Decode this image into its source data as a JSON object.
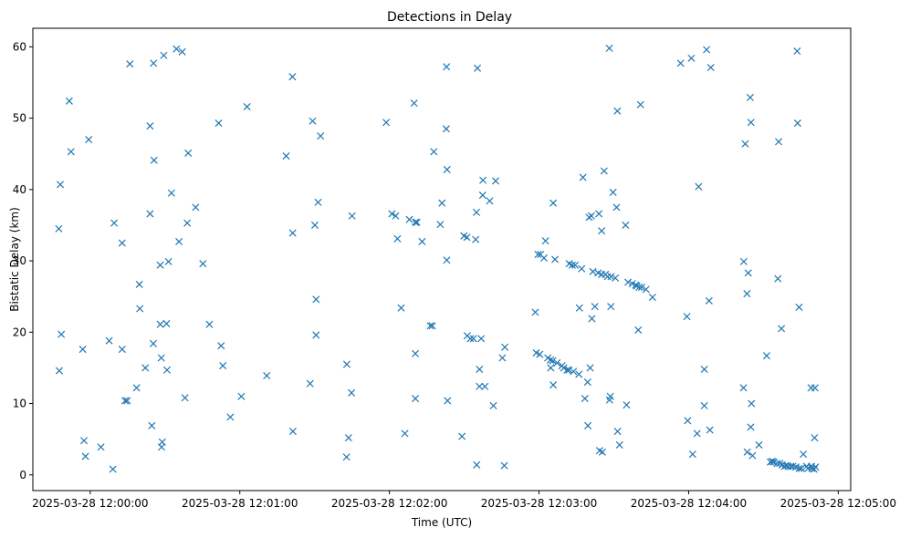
{
  "chart_data": {
    "type": "scatter",
    "title": "Detections in Delay",
    "xlabel": "Time (UTC)",
    "ylabel": "Bistatic Delay (km)",
    "marker": "x",
    "marker_color": "#1f77b4",
    "x_unit": "seconds after 2025-03-28 12:00:00",
    "xlim": [
      -23,
      305
    ],
    "ylim": [
      -2.2,
      62.6
    ],
    "grid": false,
    "x_ticks": [
      {
        "value": 0,
        "label": "2025-03-28 12:00:00"
      },
      {
        "value": 60,
        "label": "2025-03-28 12:01:00"
      },
      {
        "value": 120,
        "label": "2025-03-28 12:02:00"
      },
      {
        "value": 180,
        "label": "2025-03-28 12:03:00"
      },
      {
        "value": 240,
        "label": "2025-03-28 12:04:00"
      },
      {
        "value": 300,
        "label": "2025-03-28 12:05:00"
      }
    ],
    "y_ticks": [
      {
        "value": 0,
        "label": "0"
      },
      {
        "value": 10,
        "label": "10"
      },
      {
        "value": 20,
        "label": "20"
      },
      {
        "value": 30,
        "label": "30"
      },
      {
        "value": 40,
        "label": "40"
      },
      {
        "value": 50,
        "label": "50"
      },
      {
        "value": 60,
        "label": "60"
      }
    ],
    "points": [
      [
        -12.6,
        34.5
      ],
      [
        -12.4,
        14.6
      ],
      [
        -12,
        40.7
      ],
      [
        -11.6,
        19.7
      ],
      [
        -8.4,
        52.4
      ],
      [
        -7.7,
        45.3
      ],
      [
        -3,
        17.6
      ],
      [
        -2.5,
        4.8
      ],
      [
        -1.9,
        2.6
      ],
      [
        -0.6,
        47
      ],
      [
        4.3,
        3.9
      ],
      [
        7.6,
        18.8
      ],
      [
        9.1,
        0.8
      ],
      [
        9.6,
        35.3
      ],
      [
        12.8,
        32.5
      ],
      [
        12.8,
        17.6
      ],
      [
        14,
        10.4
      ],
      [
        14.8,
        10.4
      ],
      [
        15.9,
        57.6
      ],
      [
        18.6,
        12.2
      ],
      [
        19.7,
        26.7
      ],
      [
        19.9,
        23.3
      ],
      [
        22.1,
        15
      ],
      [
        24,
        48.9
      ],
      [
        24,
        36.6
      ],
      [
        24.7,
        6.9
      ],
      [
        25.3,
        18.4
      ],
      [
        25.4,
        57.7
      ],
      [
        25.6,
        44.1
      ],
      [
        28.1,
        21.1
      ],
      [
        28.1,
        29.4
      ],
      [
        28.5,
        16.4
      ],
      [
        28.6,
        3.9
      ],
      [
        28.9,
        4.6
      ],
      [
        29.5,
        58.8
      ],
      [
        30.6,
        21.2
      ],
      [
        30.8,
        14.7
      ],
      [
        31.4,
        29.9
      ],
      [
        32.6,
        39.5
      ],
      [
        34.6,
        59.7
      ],
      [
        35.6,
        32.7
      ],
      [
        36.9,
        59.3
      ],
      [
        38,
        10.8
      ],
      [
        38.9,
        35.3
      ],
      [
        39.3,
        45.1
      ],
      [
        42.3,
        37.5
      ],
      [
        45.2,
        29.6
      ],
      [
        47.8,
        21.1
      ],
      [
        51.5,
        49.3
      ],
      [
        52.5,
        18.1
      ],
      [
        53.2,
        15.3
      ],
      [
        56.2,
        8.1
      ],
      [
        60.6,
        11
      ],
      [
        62.9,
        51.6
      ],
      [
        70.8,
        13.9
      ],
      [
        78.6,
        44.7
      ],
      [
        81.1,
        55.8
      ],
      [
        81.2,
        33.9
      ],
      [
        81.3,
        6.1
      ],
      [
        88.2,
        12.8
      ],
      [
        89.2,
        49.6
      ],
      [
        90.1,
        35
      ],
      [
        90.6,
        19.6
      ],
      [
        90.6,
        24.6
      ],
      [
        91.4,
        38.2
      ],
      [
        92.4,
        47.5
      ],
      [
        102.8,
        2.5
      ],
      [
        102.9,
        15.5
      ],
      [
        103.6,
        5.2
      ],
      [
        104.8,
        11.5
      ],
      [
        105,
        36.3
      ],
      [
        118.7,
        49.4
      ],
      [
        121,
        36.6
      ],
      [
        122.5,
        36.3
      ],
      [
        123.2,
        33.1
      ],
      [
        124.7,
        23.4
      ],
      [
        126.2,
        5.8
      ],
      [
        128,
        35.8
      ],
      [
        129.9,
        52.1
      ],
      [
        130.4,
        17
      ],
      [
        130.4,
        10.7
      ],
      [
        130.4,
        35.4
      ],
      [
        131,
        35.4
      ],
      [
        133.1,
        32.7
      ],
      [
        136.4,
        20.9
      ],
      [
        137.2,
        20.9
      ],
      [
        137.8,
        45.3
      ],
      [
        140.4,
        35.1
      ],
      [
        141.1,
        38.1
      ],
      [
        142.8,
        48.5
      ],
      [
        142.9,
        57.2
      ],
      [
        143,
        30.1
      ],
      [
        143.1,
        42.8
      ],
      [
        143.3,
        10.4
      ],
      [
        149.1,
        5.4
      ],
      [
        149.9,
        33.5
      ],
      [
        151.1,
        33.3
      ],
      [
        151.2,
        19.5
      ],
      [
        152.5,
        19.1
      ],
      [
        153.7,
        19.1
      ],
      [
        154.6,
        33
      ],
      [
        154.9,
        36.8
      ],
      [
        155,
        1.4
      ],
      [
        155.3,
        57
      ],
      [
        156.1,
        14.8
      ],
      [
        156.1,
        12.4
      ],
      [
        156.8,
        19.1
      ],
      [
        157.4,
        39.2
      ],
      [
        157.5,
        41.3
      ],
      [
        158.3,
        12.4
      ],
      [
        160.2,
        38.4
      ],
      [
        161.7,
        9.7
      ],
      [
        162.6,
        41.2
      ],
      [
        165.3,
        16.4
      ],
      [
        166.1,
        1.3
      ],
      [
        166.3,
        17.9
      ],
      [
        178.5,
        22.8
      ],
      [
        178.9,
        17.1
      ],
      [
        179.6,
        30.9
      ],
      [
        180.3,
        16.9
      ],
      [
        180.6,
        30.9
      ],
      [
        182,
        30.4
      ],
      [
        182.6,
        32.8
      ],
      [
        183.5,
        16.4
      ],
      [
        184.6,
        16.1
      ],
      [
        184.7,
        15
      ],
      [
        185.5,
        16
      ],
      [
        185.7,
        38.1
      ],
      [
        185.7,
        12.6
      ],
      [
        186.4,
        30.2
      ],
      [
        187.2,
        15.7
      ],
      [
        189.2,
        15.3
      ],
      [
        189.9,
        15
      ],
      [
        191.3,
        14.7
      ],
      [
        192,
        14.7
      ],
      [
        192.1,
        29.6
      ],
      [
        193.3,
        29.4
      ],
      [
        193.8,
        14.5
      ],
      [
        194.5,
        29.4
      ],
      [
        196,
        14.1
      ],
      [
        196.2,
        23.4
      ],
      [
        197.1,
        28.9
      ],
      [
        197.6,
        41.7
      ],
      [
        198.4,
        10.7
      ],
      [
        199.5,
        13
      ],
      [
        199.6,
        6.9
      ],
      [
        200.1,
        36.1
      ],
      [
        200.5,
        15
      ],
      [
        201,
        36.3
      ],
      [
        201.2,
        21.9
      ],
      [
        201.6,
        28.5
      ],
      [
        202.4,
        23.6
      ],
      [
        203.7,
        28.3
      ],
      [
        204,
        36.6
      ],
      [
        204.3,
        3.4
      ],
      [
        205.1,
        28.1
      ],
      [
        205.1,
        34.2
      ],
      [
        205.4,
        3.2
      ],
      [
        206.1,
        42.6
      ],
      [
        206.6,
        28.1
      ],
      [
        207.5,
        27.8
      ],
      [
        208.2,
        59.8
      ],
      [
        208.3,
        10.5
      ],
      [
        208.6,
        11
      ],
      [
        208.8,
        23.6
      ],
      [
        208.9,
        27.8
      ],
      [
        209.7,
        39.6
      ],
      [
        210.6,
        27.6
      ],
      [
        211.1,
        37.5
      ],
      [
        211.4,
        51
      ],
      [
        211.5,
        6.1
      ],
      [
        212.3,
        4.2
      ],
      [
        214.7,
        35
      ],
      [
        215.1,
        9.8
      ],
      [
        215.7,
        27
      ],
      [
        217.4,
        26.8
      ],
      [
        218.7,
        26.6
      ],
      [
        219.2,
        26.5
      ],
      [
        219.8,
        20.3
      ],
      [
        220.1,
        26.3
      ],
      [
        220.7,
        51.9
      ],
      [
        221.1,
        26.3
      ],
      [
        222.9,
        26
      ],
      [
        225.5,
        24.9
      ],
      [
        236.8,
        57.7
      ],
      [
        239.3,
        22.2
      ],
      [
        239.6,
        7.6
      ],
      [
        241.1,
        58.4
      ],
      [
        241.6,
        2.9
      ],
      [
        243.4,
        5.8
      ],
      [
        244,
        40.4
      ],
      [
        246.3,
        14.8
      ],
      [
        246.3,
        9.7
      ],
      [
        247.2,
        59.6
      ],
      [
        248.2,
        24.4
      ],
      [
        248.5,
        6.3
      ],
      [
        248.9,
        57.1
      ],
      [
        262,
        12.2
      ],
      [
        262.1,
        29.9
      ],
      [
        262.7,
        46.4
      ],
      [
        263.4,
        25.4
      ],
      [
        263.5,
        3.2
      ],
      [
        263.9,
        28.3
      ],
      [
        264.7,
        52.9
      ],
      [
        264.9,
        6.7
      ],
      [
        265,
        49.4
      ],
      [
        265.2,
        10
      ],
      [
        265.6,
        2.7
      ],
      [
        268.2,
        4.2
      ],
      [
        271.3,
        16.7
      ],
      [
        272.8,
        1.8
      ],
      [
        273.5,
        1.9
      ],
      [
        274.1,
        1.8
      ],
      [
        275.5,
        1.6
      ],
      [
        275.8,
        27.5
      ],
      [
        276.1,
        46.7
      ],
      [
        276.6,
        1.6
      ],
      [
        277.2,
        20.5
      ],
      [
        277.5,
        1.4
      ],
      [
        278.4,
        1.2
      ],
      [
        279.1,
        1.3
      ],
      [
        279.9,
        1.2
      ],
      [
        281,
        1.2
      ],
      [
        281.8,
        1.2
      ],
      [
        283,
        1.1
      ],
      [
        283.5,
        59.4
      ],
      [
        283.7,
        49.3
      ],
      [
        284.3,
        23.5
      ],
      [
        284.3,
        0.9
      ],
      [
        285.2,
        0.9
      ],
      [
        286,
        2.9
      ],
      [
        287.3,
        1.2
      ],
      [
        287.9,
        0.9
      ],
      [
        289.1,
        12.2
      ],
      [
        289.3,
        1.2
      ],
      [
        289.4,
        0.9
      ],
      [
        290.3,
        0.8
      ],
      [
        290.5,
        5.2
      ],
      [
        290.7,
        12.2
      ],
      [
        290.9,
        1.1
      ]
    ]
  }
}
